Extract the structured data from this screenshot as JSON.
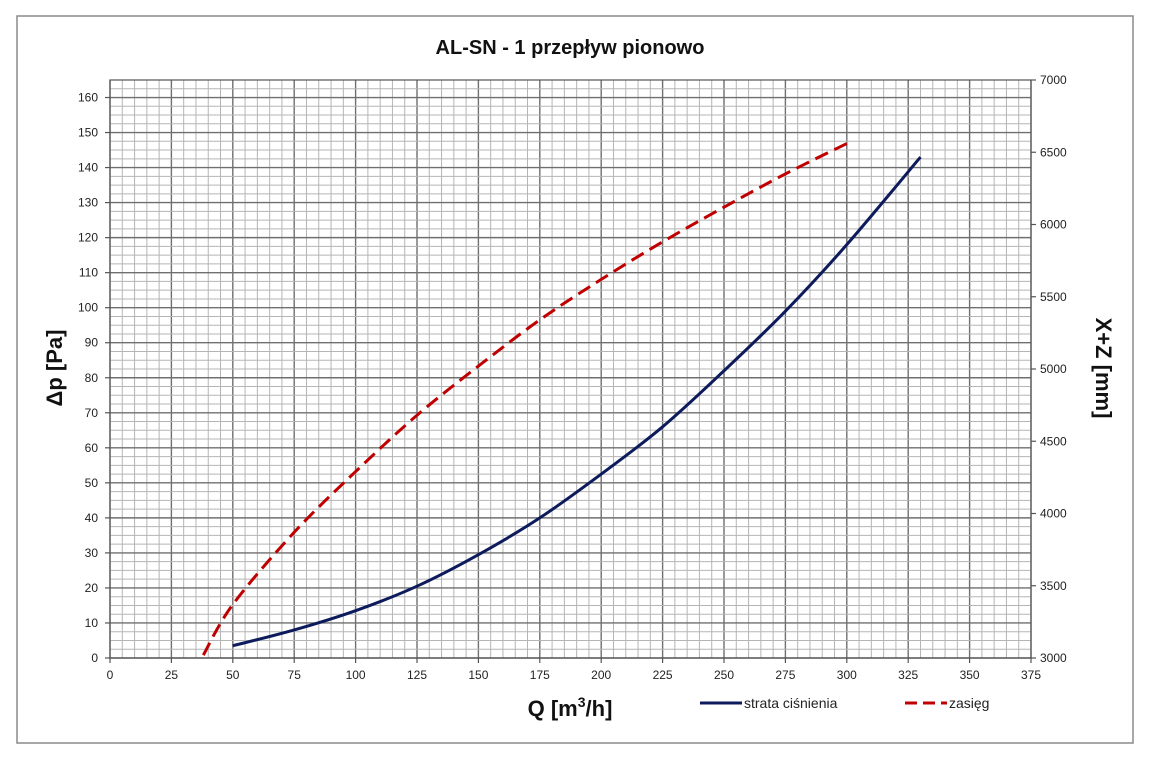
{
  "chart_data": {
    "type": "line",
    "title": "AL-SN - 1  przepływ pionowo",
    "xlabel": {
      "main": "Q [m",
      "sup": "3",
      "rest": "/h]"
    },
    "ylabel": "Δp [Pa]",
    "y2label": "X+Z [mm]",
    "xlim": [
      0,
      375
    ],
    "ylim": [
      0,
      165
    ],
    "y2lim": [
      3000,
      7000
    ],
    "xticks": [
      0,
      25,
      50,
      75,
      100,
      125,
      150,
      175,
      200,
      225,
      250,
      275,
      300,
      325,
      350,
      375
    ],
    "yticks": [
      0,
      10,
      20,
      30,
      40,
      50,
      60,
      70,
      80,
      90,
      100,
      110,
      120,
      130,
      140,
      150,
      160
    ],
    "y2ticks": [
      3000,
      3500,
      4000,
      4500,
      5000,
      5500,
      6000,
      6500,
      7000
    ],
    "grid": true,
    "legend_position": "bottom-right",
    "series": [
      {
        "name": "strata ciśnienia",
        "axis": "left",
        "color": "#0d1b5c",
        "dash": "solid",
        "x": [
          50,
          75,
          100,
          125,
          150,
          175,
          200,
          225,
          250,
          275,
          300,
          330
        ],
        "y": [
          3.5,
          8,
          13.5,
          20.5,
          29.5,
          40,
          52.5,
          66,
          82,
          99,
          118,
          143
        ]
      },
      {
        "name": "zasięg",
        "axis": "right",
        "color": "#c00000",
        "dash": "dashed",
        "x": [
          38,
          50,
          75,
          100,
          125,
          150,
          175,
          200,
          225,
          250,
          275,
          300
        ],
        "y": [
          3020,
          3370,
          3870,
          4290,
          4680,
          5020,
          5340,
          5620,
          5880,
          6120,
          6350,
          6560
        ]
      }
    ]
  }
}
